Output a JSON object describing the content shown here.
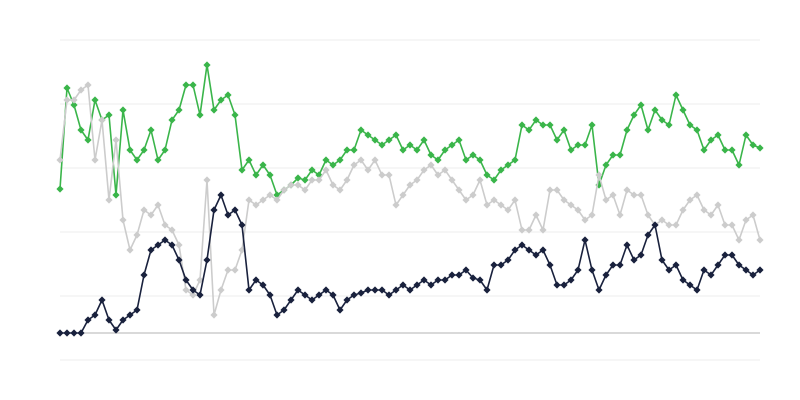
{
  "chart_data": {
    "type": "line",
    "title": "",
    "xlabel": "",
    "ylabel": "",
    "ylim": [
      -13.5,
      146.5
    ],
    "grid": true,
    "gridlines": [
      -13.5,
      18.5,
      50.5,
      82.5,
      114.5,
      146.5
    ],
    "baseline": 0,
    "marker": "diamond",
    "x": [
      0,
      1,
      2,
      3,
      4,
      5,
      6,
      7,
      8,
      9,
      10,
      11,
      12,
      13,
      14,
      15,
      16,
      17,
      18,
      19,
      20,
      21,
      22,
      23,
      24,
      25,
      26,
      27,
      28,
      29,
      30,
      31,
      32,
      33,
      34,
      35,
      36,
      37,
      38,
      39,
      40,
      41,
      42,
      43,
      44,
      45,
      46,
      47,
      48,
      49,
      50,
      51,
      52,
      53,
      54,
      55,
      56,
      57,
      58,
      59,
      60,
      61,
      62,
      63,
      64,
      65,
      66,
      67,
      68,
      69,
      70,
      71,
      72,
      73,
      74,
      75,
      76,
      77,
      78,
      79,
      80,
      81,
      82,
      83,
      84,
      85,
      86,
      87,
      88,
      89,
      90,
      91,
      92,
      93,
      94,
      95,
      96,
      97,
      98,
      99,
      100
    ],
    "series": [
      {
        "color": "#3ab54a",
        "values": [
          72,
          122.5,
          114,
          101.5,
          96.5,
          116.5,
          106.5,
          109,
          69,
          111.5,
          91.5,
          86.5,
          91.5,
          101.5,
          86.5,
          91.5,
          106.5,
          111.5,
          124,
          124,
          109,
          134,
          111.5,
          116.5,
          119,
          109,
          81.5,
          86.5,
          79,
          84,
          79,
          69,
          71.5,
          74,
          77.5,
          76.5,
          81.5,
          79,
          86.5,
          84,
          86.5,
          91.5,
          91.5,
          101.5,
          99,
          96.5,
          94,
          96.5,
          99,
          91.5,
          94,
          91.5,
          96.5,
          89,
          86.5,
          91.5,
          94,
          96.5,
          86.5,
          89,
          86.5,
          79,
          76.5,
          81.5,
          84,
          86.5,
          104,
          101.5,
          106.5,
          104,
          104,
          96.5,
          101.5,
          91.5,
          94,
          94,
          104,
          74,
          84,
          89,
          89,
          101.5,
          109,
          114,
          101.5,
          111.5,
          106.5,
          104,
          119,
          111.5,
          104,
          101.5,
          91.5,
          96.5,
          99,
          91.5,
          91.5,
          84,
          99,
          94,
          92.5
        ]
      },
      {
        "color": "#cccccc",
        "values": [
          86.5,
          116.5,
          116.5,
          121.5,
          124,
          86.5,
          106.5,
          66.5,
          96.5,
          56.5,
          41.5,
          49,
          61.5,
          59,
          64,
          54,
          51.5,
          44,
          21.5,
          19,
          26.5,
          76.5,
          9,
          21.5,
          31.5,
          31.5,
          41.5,
          66.5,
          64,
          66.5,
          69,
          66.5,
          71.5,
          74,
          74,
          71.5,
          76.5,
          76.5,
          81.5,
          74,
          71.5,
          76.5,
          84,
          86.5,
          81.5,
          86.5,
          79,
          79,
          64,
          69,
          74,
          76.5,
          81.5,
          84,
          79,
          81.5,
          76.5,
          71.5,
          66.5,
          69,
          76.5,
          64,
          66.5,
          64,
          61.5,
          66.5,
          51.5,
          51.5,
          59,
          51.5,
          71.5,
          71.5,
          66.5,
          64,
          61.5,
          56.5,
          59,
          79,
          66.5,
          69,
          59,
          71.5,
          69,
          69,
          59,
          54,
          56.5,
          54,
          54,
          61.5,
          66.5,
          69,
          61.5,
          59,
          64,
          54,
          54,
          46.5,
          56.5,
          59,
          46.5
        ]
      },
      {
        "color": "#19213d",
        "values": [
          0,
          0,
          0,
          0,
          6.5,
          9,
          16.5,
          6.5,
          1.5,
          6.5,
          9,
          11.5,
          29,
          41.5,
          44,
          46.5,
          44,
          36.5,
          26.5,
          21.5,
          19,
          36.5,
          61.5,
          69,
          59,
          61.5,
          54,
          21.5,
          26.5,
          24,
          19,
          9,
          11.5,
          16.5,
          21.5,
          19,
          16.5,
          19,
          21.5,
          19,
          11.5,
          16.5,
          19,
          20,
          21.5,
          21.5,
          21.5,
          19,
          21.5,
          24,
          21.5,
          24,
          26.5,
          24,
          26.5,
          26.5,
          29,
          29,
          31.5,
          27.5,
          26.5,
          21.5,
          34,
          34,
          36.5,
          41.5,
          44,
          41.5,
          39,
          41.5,
          34,
          24,
          24,
          26.5,
          31.5,
          46.5,
          31.5,
          21.5,
          29,
          34,
          34,
          44,
          36.5,
          39,
          49,
          54,
          36.5,
          31.5,
          34,
          26.5,
          24,
          21.5,
          31.5,
          29,
          34,
          39,
          39,
          34,
          31.5,
          29,
          31.5
        ]
      }
    ]
  }
}
